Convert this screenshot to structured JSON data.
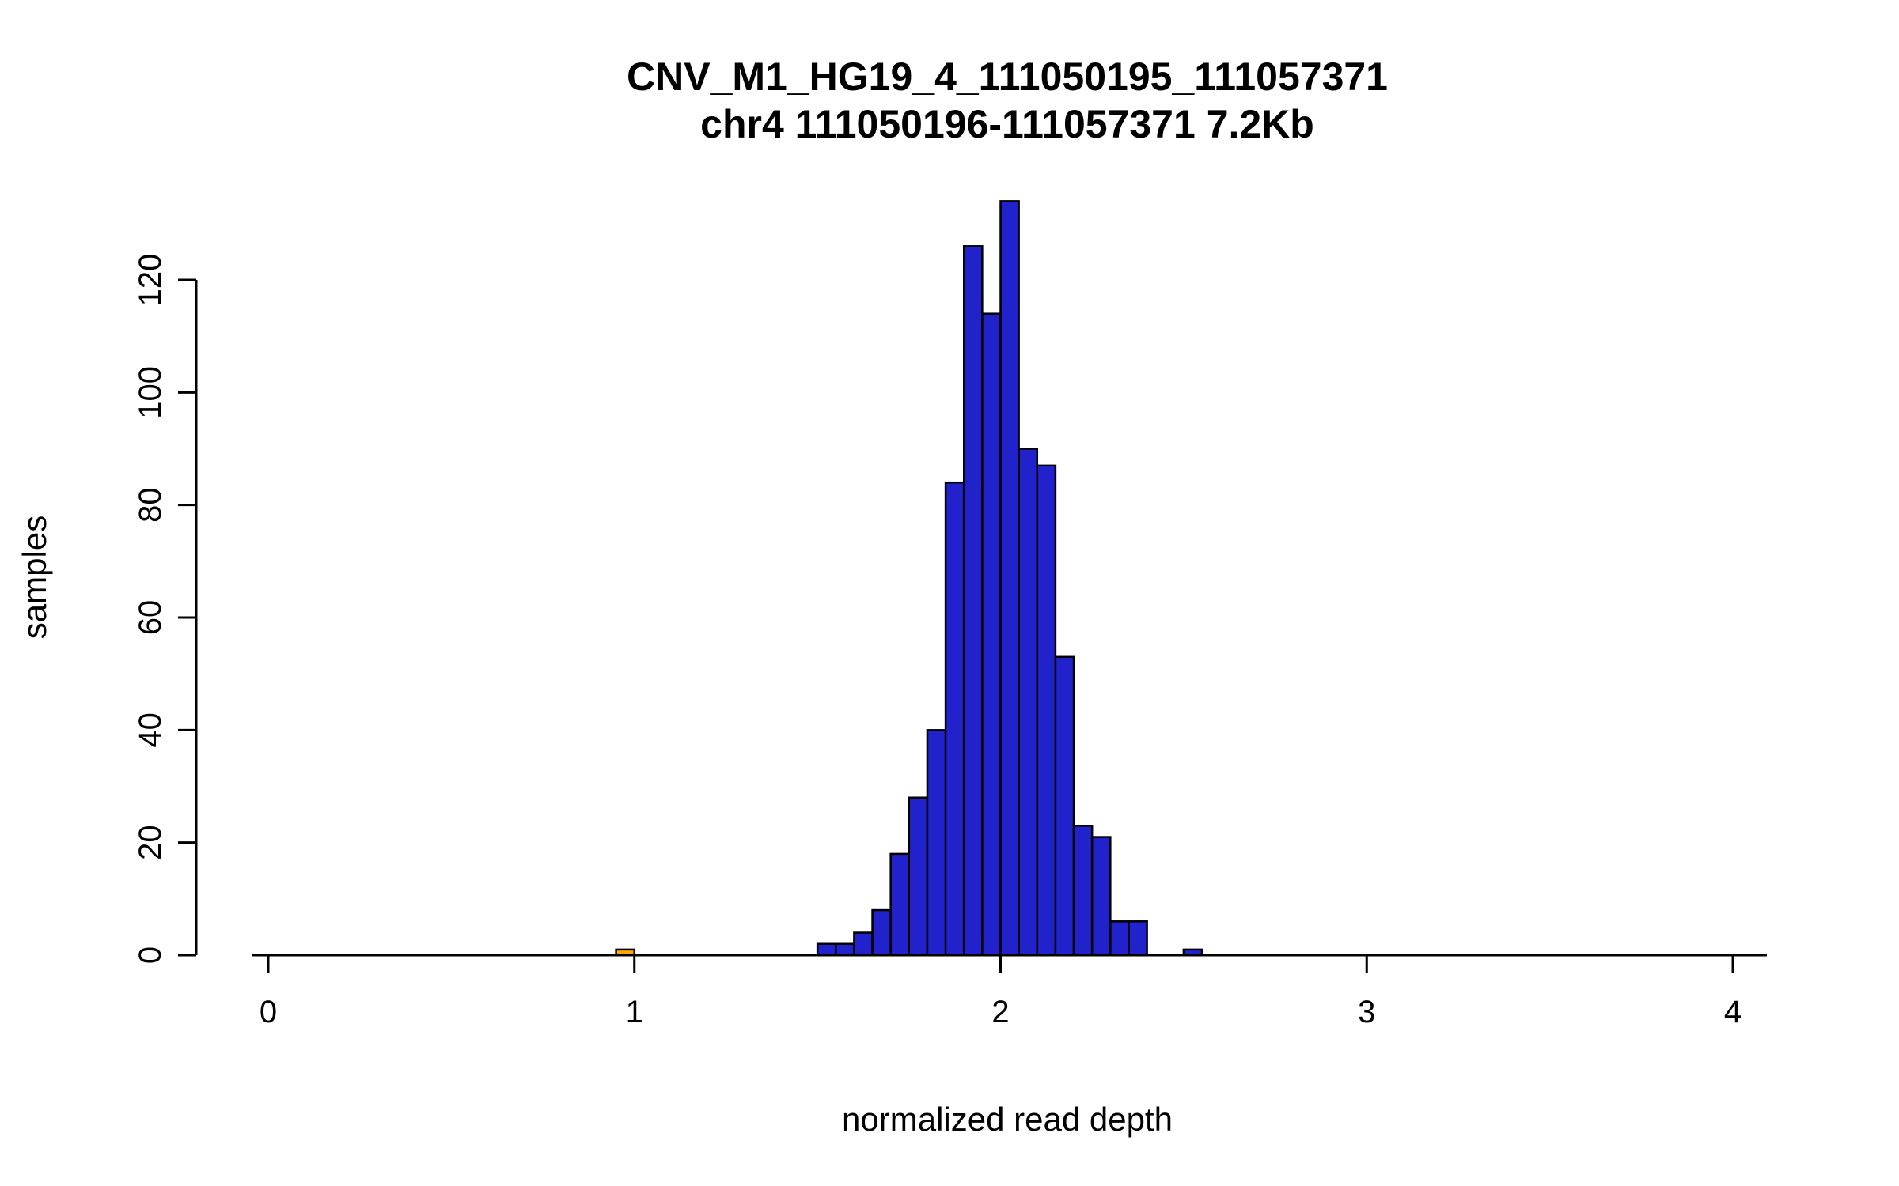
{
  "chart": {
    "title_line1": "CNV_M1_HG19_4_111050195_111057371",
    "title_line2": "chr4 111050196-111057371 7.2Kb",
    "xlabel": "normalized read depth",
    "ylabel": "samples"
  },
  "chart_data": {
    "type": "bar",
    "subtype": "histogram",
    "title": "CNV_M1_HG19_4_111050195_111057371",
    "subtitle": "chr4 111050196-111057371 7.2Kb",
    "xlabel": "normalized read depth",
    "ylabel": "samples",
    "xlim": [
      0,
      4
    ],
    "ylim": [
      0,
      134
    ],
    "x_ticks": [
      "0",
      "1",
      "2",
      "3",
      "4"
    ],
    "x_tick_values": [
      0,
      1,
      2,
      3,
      4
    ],
    "y_ticks": [
      "0",
      "20",
      "40",
      "60",
      "80",
      "100",
      "120"
    ],
    "y_tick_values": [
      0,
      20,
      40,
      60,
      80,
      100,
      120
    ],
    "grid": false,
    "legend": "none",
    "bin_width": 0.05,
    "bar_fill": "#2222cc",
    "bar_stroke": "#000000",
    "highlight_fill": "#ffa500",
    "bins": [
      {
        "x0": 0.95,
        "x1": 1.0,
        "count": 1,
        "color": "#ffa500"
      },
      {
        "x0": 1.5,
        "x1": 1.55,
        "count": 2,
        "color": "#2222cc"
      },
      {
        "x0": 1.55,
        "x1": 1.6,
        "count": 2,
        "color": "#2222cc"
      },
      {
        "x0": 1.6,
        "x1": 1.65,
        "count": 4,
        "color": "#2222cc"
      },
      {
        "x0": 1.65,
        "x1": 1.7,
        "count": 8,
        "color": "#2222cc"
      },
      {
        "x0": 1.7,
        "x1": 1.75,
        "count": 18,
        "color": "#2222cc"
      },
      {
        "x0": 1.75,
        "x1": 1.8,
        "count": 28,
        "color": "#2222cc"
      },
      {
        "x0": 1.8,
        "x1": 1.85,
        "count": 40,
        "color": "#2222cc"
      },
      {
        "x0": 1.85,
        "x1": 1.9,
        "count": 84,
        "color": "#2222cc"
      },
      {
        "x0": 1.9,
        "x1": 1.95,
        "count": 126,
        "color": "#2222cc"
      },
      {
        "x0": 1.95,
        "x1": 2.0,
        "count": 114,
        "color": "#2222cc"
      },
      {
        "x0": 2.0,
        "x1": 2.05,
        "count": 134,
        "color": "#2222cc"
      },
      {
        "x0": 2.05,
        "x1": 2.1,
        "count": 90,
        "color": "#2222cc"
      },
      {
        "x0": 2.1,
        "x1": 2.15,
        "count": 87,
        "color": "#2222cc"
      },
      {
        "x0": 2.15,
        "x1": 2.2,
        "count": 53,
        "color": "#2222cc"
      },
      {
        "x0": 2.2,
        "x1": 2.25,
        "count": 23,
        "color": "#2222cc"
      },
      {
        "x0": 2.25,
        "x1": 2.3,
        "count": 21,
        "color": "#2222cc"
      },
      {
        "x0": 2.3,
        "x1": 2.35,
        "count": 6,
        "color": "#2222cc"
      },
      {
        "x0": 2.35,
        "x1": 2.4,
        "count": 6,
        "color": "#2222cc"
      },
      {
        "x0": 2.5,
        "x1": 2.55,
        "count": 1,
        "color": "#2222cc"
      }
    ]
  }
}
